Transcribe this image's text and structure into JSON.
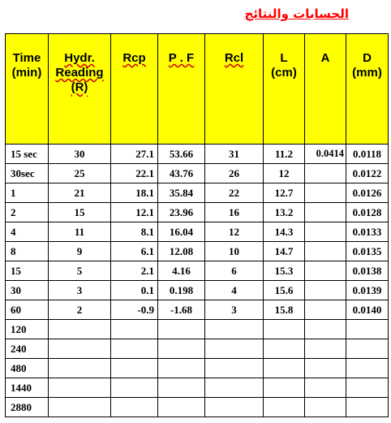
{
  "title": "الحسابات والنتائج",
  "headers": [
    "Time\n(min)",
    "Hydr.\nReading\n(R)",
    "Rcp",
    "P . F",
    "Rcl",
    "L\n(cm)",
    "A",
    "D\n(mm)"
  ],
  "rows": [
    [
      "15 sec",
      "30",
      "27.1",
      "53.66",
      "31",
      "11.2",
      "0.0414",
      "0.0118"
    ],
    [
      "30sec",
      "25",
      "22.1",
      "43.76",
      "26",
      "12",
      "",
      "0.0122"
    ],
    [
      "1",
      "21",
      "18.1",
      "35.84",
      "22",
      "12.7",
      "",
      "0.0126"
    ],
    [
      "2",
      "15",
      "12.1",
      "23.96",
      "16",
      "13.2",
      "",
      "0.0128"
    ],
    [
      "4",
      "11",
      "8.1",
      "16.04",
      "12",
      "14.3",
      "",
      "0.0133"
    ],
    [
      "8",
      "9",
      "6.1",
      "12.08",
      "10",
      "14.7",
      "",
      "0.0135"
    ],
    [
      "15",
      "5",
      "2.1",
      "4.16",
      "6",
      "15.3",
      "",
      "0.0138"
    ],
    [
      "30",
      "3",
      "0.1",
      "0.198",
      "4",
      "15.6",
      "",
      "0.0139"
    ],
    [
      "60",
      "2",
      "-0.9",
      "-1.68",
      "3",
      "15.8",
      "",
      "0.0140"
    ],
    [
      "120",
      "",
      "",
      "",
      "",
      "",
      "",
      ""
    ],
    [
      "240",
      "",
      "",
      "",
      "",
      "",
      "",
      ""
    ],
    [
      "480",
      "",
      "",
      "",
      "",
      "",
      "",
      ""
    ],
    [
      "1440",
      "",
      "",
      "",
      "",
      "",
      "",
      ""
    ],
    [
      "2880",
      "",
      "",
      "",
      "",
      "",
      "",
      ""
    ]
  ],
  "colors": {
    "header_bg": "#ffff00",
    "title": "#ff0000"
  }
}
